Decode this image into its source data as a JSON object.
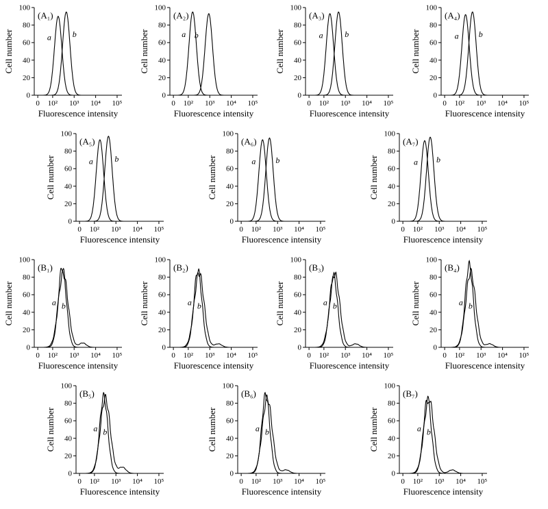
{
  "figure": {
    "background": "#ffffff",
    "line_color": "#000000"
  },
  "axes": {
    "xlabel": "Fluorescence intensity",
    "ylabel": "Cell number",
    "xticks": [
      "0",
      "10²",
      "10³",
      "10⁴",
      "10⁵"
    ],
    "yticks": [
      0,
      20,
      40,
      60,
      80,
      100
    ],
    "ylim": [
      0,
      100
    ],
    "xscale": "log"
  },
  "chart_data": [
    {
      "panel": "(A₁)",
      "type": "line",
      "xlabel": "Fluorescence intensity",
      "ylabel": "Cell number",
      "series": [
        {
          "name": "a",
          "peak_x": 180,
          "peak_y": 90
        },
        {
          "name": "b",
          "peak_x": 430,
          "peak_y": 95
        }
      ]
    },
    {
      "panel": "(A₂)",
      "type": "line",
      "xlabel": "Fluorescence intensity",
      "ylabel": "Cell number",
      "series": [
        {
          "name": "a",
          "peak_x": 160,
          "peak_y": 95
        },
        {
          "name": "b",
          "peak_x": 900,
          "peak_y": 93
        }
      ]
    },
    {
      "panel": "(A₃)",
      "type": "line",
      "xlabel": "Fluorescence intensity",
      "ylabel": "Cell number",
      "series": [
        {
          "name": "a",
          "peak_x": 190,
          "peak_y": 93
        },
        {
          "name": "b",
          "peak_x": 480,
          "peak_y": 95
        }
      ]
    },
    {
      "panel": "(A₄)",
      "type": "line",
      "xlabel": "Fluorescence intensity",
      "ylabel": "Cell number",
      "series": [
        {
          "name": "a",
          "peak_x": 190,
          "peak_y": 92
        },
        {
          "name": "b",
          "peak_x": 400,
          "peak_y": 95
        }
      ]
    },
    {
      "panel": "(A₅)",
      "type": "line",
      "xlabel": "Fluorescence intensity",
      "ylabel": "Cell number",
      "series": [
        {
          "name": "a",
          "peak_x": 180,
          "peak_y": 93
        },
        {
          "name": "b",
          "peak_x": 450,
          "peak_y": 97
        }
      ]
    },
    {
      "panel": "(A₆)",
      "type": "line",
      "xlabel": "Fluorescence intensity",
      "ylabel": "Cell number",
      "series": [
        {
          "name": "a",
          "peak_x": 200,
          "peak_y": 93
        },
        {
          "name": "b",
          "peak_x": 420,
          "peak_y": 95
        }
      ]
    },
    {
      "panel": "(A₇)",
      "type": "line",
      "xlabel": "Fluorescence intensity",
      "ylabel": "Cell number",
      "series": [
        {
          "name": "a",
          "peak_x": 210,
          "peak_y": 92
        },
        {
          "name": "b",
          "peak_x": 380,
          "peak_y": 96
        }
      ]
    },
    {
      "panel": "(B₁)",
      "type": "line",
      "xlabel": "Fluorescence intensity",
      "ylabel": "Cell number",
      "series": [
        {
          "name": "a",
          "peak_x": 280,
          "peak_y": 92
        },
        {
          "name": "b",
          "peak_x": 310,
          "peak_y": 84,
          "shoulder": {
            "x": 2500,
            "y": 5
          }
        }
      ]
    },
    {
      "panel": "(B₂)",
      "type": "line",
      "xlabel": "Fluorescence intensity",
      "ylabel": "Cell number",
      "series": [
        {
          "name": "a",
          "peak_x": 280,
          "peak_y": 88
        },
        {
          "name": "b",
          "peak_x": 320,
          "peak_y": 85,
          "shoulder": {
            "x": 2500,
            "y": 4
          }
        }
      ]
    },
    {
      "panel": "(B₃)",
      "type": "line",
      "xlabel": "Fluorescence intensity",
      "ylabel": "Cell number",
      "series": [
        {
          "name": "a",
          "peak_x": 280,
          "peak_y": 82
        },
        {
          "name": "b",
          "peak_x": 320,
          "peak_y": 84,
          "shoulder": {
            "x": 3000,
            "y": 4
          }
        }
      ]
    },
    {
      "panel": "(B₄)",
      "type": "line",
      "xlabel": "Fluorescence intensity",
      "ylabel": "Cell number",
      "series": [
        {
          "name": "a",
          "peak_x": 280,
          "peak_y": 94
        },
        {
          "name": "b",
          "peak_x": 330,
          "peak_y": 86,
          "shoulder": {
            "x": 2500,
            "y": 4
          }
        }
      ]
    },
    {
      "panel": "(B₅)",
      "type": "line",
      "xlabel": "Fluorescence intensity",
      "ylabel": "Cell number",
      "series": [
        {
          "name": "a",
          "peak_x": 270,
          "peak_y": 88
        },
        {
          "name": "b",
          "peak_x": 320,
          "peak_y": 86,
          "shoulder": {
            "x": 2000,
            "y": 7
          }
        }
      ]
    },
    {
      "panel": "(B₆)",
      "type": "line",
      "xlabel": "Fluorescence intensity",
      "ylabel": "Cell number",
      "series": [
        {
          "name": "a",
          "peak_x": 280,
          "peak_y": 90
        },
        {
          "name": "b",
          "peak_x": 330,
          "peak_y": 86,
          "shoulder": {
            "x": 2500,
            "y": 4
          }
        }
      ]
    },
    {
      "panel": "(B₇)",
      "type": "line",
      "xlabel": "Fluorescence intensity",
      "ylabel": "Cell number",
      "series": [
        {
          "name": "a",
          "peak_x": 280,
          "peak_y": 84
        },
        {
          "name": "b",
          "peak_x": 330,
          "peak_y": 86,
          "shoulder": {
            "x": 4000,
            "y": 4
          }
        }
      ]
    }
  ]
}
